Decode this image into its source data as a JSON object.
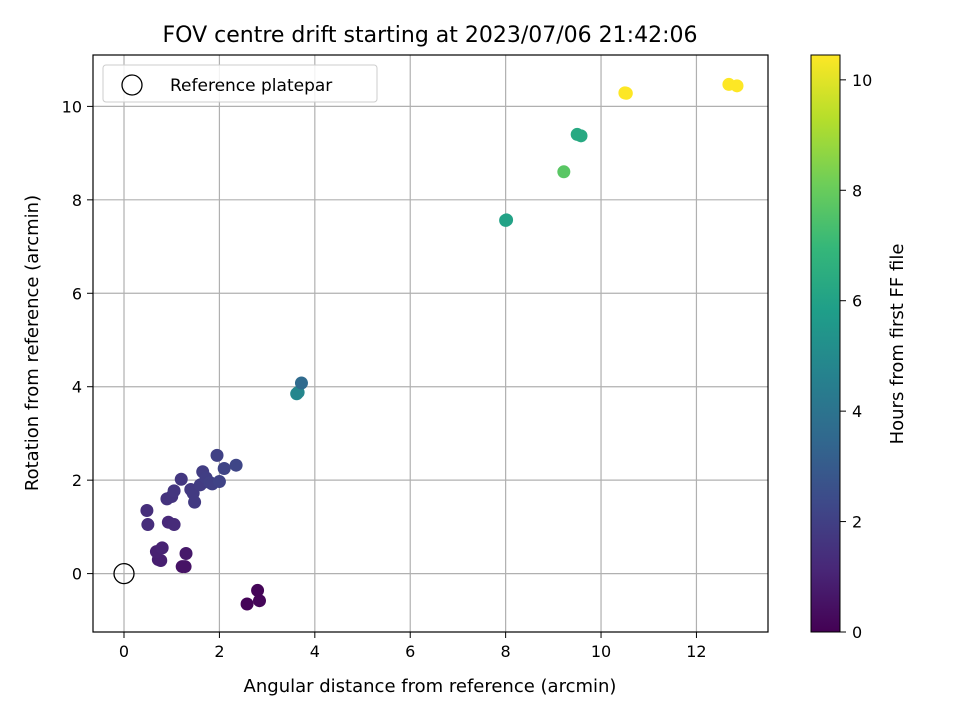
{
  "chart_data": {
    "type": "scatter",
    "title": "FOV centre drift starting at 2023/07/06 21:42:06",
    "xlabel": "Angular distance from reference (arcmin)",
    "ylabel": "Rotation from reference (arcmin)",
    "xlim": [
      -0.65,
      13.5
    ],
    "ylim": [
      -1.25,
      11.1
    ],
    "xticks": [
      0,
      2,
      4,
      6,
      8,
      10,
      12
    ],
    "yticks": [
      0,
      2,
      4,
      6,
      8,
      10
    ],
    "grid": true,
    "legend": {
      "position": "top-left",
      "entries": [
        {
          "label": "Reference platepar",
          "marker": "open-circle"
        }
      ]
    },
    "reference_point": {
      "x": 0,
      "y": 0
    },
    "colorbar": {
      "label": "Hours from first FF file",
      "range": [
        0,
        10.45
      ],
      "ticks": [
        0,
        2,
        4,
        6,
        8,
        10
      ],
      "colormap": "viridis",
      "stops": [
        "#440154",
        "#482878",
        "#3e4989",
        "#31688e",
        "#26828e",
        "#1f9e89",
        "#35b779",
        "#6ece58",
        "#b5de2b",
        "#fde725"
      ]
    },
    "points": [
      {
        "x": 2.58,
        "y": -0.65,
        "c": 0.1
      },
      {
        "x": 2.84,
        "y": -0.58,
        "c": 0.15
      },
      {
        "x": 2.8,
        "y": -0.36,
        "c": 0.12
      },
      {
        "x": 1.22,
        "y": 0.15,
        "c": 0.55
      },
      {
        "x": 1.28,
        "y": 0.15,
        "c": 0.55
      },
      {
        "x": 1.3,
        "y": 0.43,
        "c": 0.7
      },
      {
        "x": 0.72,
        "y": 0.3,
        "c": 0.9
      },
      {
        "x": 0.77,
        "y": 0.28,
        "c": 0.9
      },
      {
        "x": 0.68,
        "y": 0.47,
        "c": 0.95
      },
      {
        "x": 0.8,
        "y": 0.55,
        "c": 1.0
      },
      {
        "x": 0.93,
        "y": 1.1,
        "c": 1.2
      },
      {
        "x": 1.05,
        "y": 1.05,
        "c": 1.25
      },
      {
        "x": 0.5,
        "y": 1.05,
        "c": 1.35
      },
      {
        "x": 0.48,
        "y": 1.35,
        "c": 1.4
      },
      {
        "x": 0.9,
        "y": 1.6,
        "c": 1.55
      },
      {
        "x": 1.0,
        "y": 1.65,
        "c": 1.6
      },
      {
        "x": 1.05,
        "y": 1.77,
        "c": 1.65
      },
      {
        "x": 1.2,
        "y": 2.02,
        "c": 1.7
      },
      {
        "x": 1.4,
        "y": 1.8,
        "c": 1.75
      },
      {
        "x": 1.45,
        "y": 1.72,
        "c": 1.8
      },
      {
        "x": 1.48,
        "y": 1.53,
        "c": 1.8
      },
      {
        "x": 1.6,
        "y": 1.9,
        "c": 1.85
      },
      {
        "x": 1.65,
        "y": 2.18,
        "c": 1.9
      },
      {
        "x": 1.72,
        "y": 2.05,
        "c": 1.95
      },
      {
        "x": 1.8,
        "y": 1.95,
        "c": 2.0
      },
      {
        "x": 1.85,
        "y": 1.92,
        "c": 2.0
      },
      {
        "x": 1.95,
        "y": 2.53,
        "c": 2.05
      },
      {
        "x": 2.0,
        "y": 1.97,
        "c": 2.1
      },
      {
        "x": 2.1,
        "y": 2.25,
        "c": 2.15
      },
      {
        "x": 2.35,
        "y": 2.32,
        "c": 2.2
      },
      {
        "x": 3.62,
        "y": 3.85,
        "c": 4.9
      },
      {
        "x": 3.65,
        "y": 3.88,
        "c": 4.8
      },
      {
        "x": 3.72,
        "y": 4.08,
        "c": 3.6
      },
      {
        "x": 8.0,
        "y": 7.56,
        "c": 6.0
      },
      {
        "x": 8.02,
        "y": 7.57,
        "c": 6.0
      },
      {
        "x": 9.22,
        "y": 8.6,
        "c": 7.7
      },
      {
        "x": 9.5,
        "y": 9.4,
        "c": 6.3
      },
      {
        "x": 9.58,
        "y": 9.37,
        "c": 6.3
      },
      {
        "x": 10.5,
        "y": 10.29,
        "c": 10.45
      },
      {
        "x": 10.53,
        "y": 10.28,
        "c": 10.45
      },
      {
        "x": 12.68,
        "y": 10.47,
        "c": 10.45
      },
      {
        "x": 12.85,
        "y": 10.44,
        "c": 10.45
      }
    ]
  }
}
